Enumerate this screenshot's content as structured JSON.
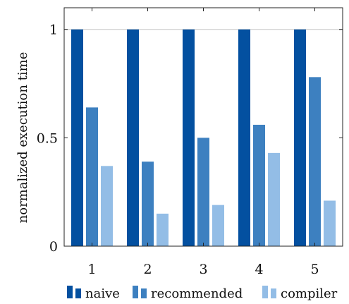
{
  "chart_data": {
    "type": "bar",
    "title": "",
    "xlabel": "",
    "ylabel": "normalized execution time",
    "categories": [
      "1",
      "2",
      "3",
      "4",
      "5"
    ],
    "ylim": [
      0,
      1.1
    ],
    "yticks": [
      {
        "value": 0,
        "label": "0"
      },
      {
        "value": 0.5,
        "label": "0.5"
      },
      {
        "value": 1,
        "label": "1"
      }
    ],
    "grid": "horizontal gridline at y = 1",
    "legend_position": "bottom",
    "series": [
      {
        "name": "naive",
        "color": "#0350a0",
        "values": [
          1,
          1,
          1,
          1,
          1
        ]
      },
      {
        "name": "recommended",
        "color": "#3d80c0",
        "values": [
          0.64,
          0.39,
          0.5,
          0.56,
          0.78
        ]
      },
      {
        "name": "compiler",
        "color": "#93bde6",
        "values": [
          0.37,
          0.15,
          0.19,
          0.43,
          0.21
        ]
      }
    ]
  }
}
